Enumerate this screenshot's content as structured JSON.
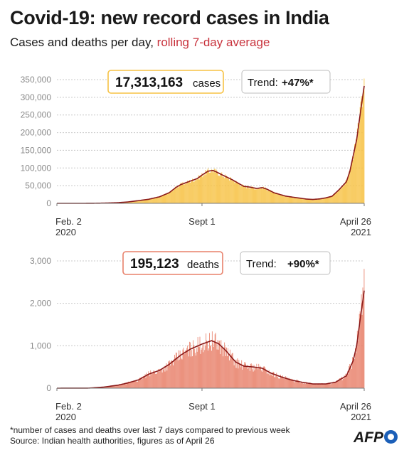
{
  "header": {
    "title": "Covid-19: new record cases in India",
    "subtitle_main": "Cases and deaths per day, ",
    "subtitle_accent": "rolling 7-day average"
  },
  "colors": {
    "cases_bar": "#f7c244",
    "deaths_bar": "#e8806a",
    "avg_line": "#8b1a1a",
    "accent_text": "#c8323c",
    "logo_blue": "#1b5fb8"
  },
  "chart_data": [
    {
      "type": "bar",
      "name": "cases",
      "x_start": "2020-02-02",
      "x_end": "2021-04-26",
      "ylim": [
        0,
        350000
      ],
      "yticks": [
        0,
        50000,
        100000,
        150000,
        200000,
        250000,
        300000,
        350000
      ],
      "ytick_labels": [
        "0",
        "50,000",
        "100,000",
        "150,000",
        "200,000",
        "250,000",
        "300,000",
        "350,000"
      ],
      "xtick_labels": [
        {
          "date": "2020-02-02",
          "line1": "Feb. 2",
          "line2": "2020"
        },
        {
          "date": "2020-09-01",
          "line1": "Sept 1",
          "line2": ""
        },
        {
          "date": "2021-04-26",
          "line1": "April 26",
          "line2": "2021"
        }
      ],
      "total_value": "17,313,163",
      "total_unit": "cases",
      "trend_label": "Trend:",
      "trend_value": "+47%*",
      "rolling_avg": [
        [
          "2020-02-02",
          0
        ],
        [
          "2020-03-15",
          20
        ],
        [
          "2020-04-01",
          300
        ],
        [
          "2020-04-15",
          900
        ],
        [
          "2020-05-01",
          1900
        ],
        [
          "2020-05-15",
          3800
        ],
        [
          "2020-06-01",
          7800
        ],
        [
          "2020-06-15",
          11500
        ],
        [
          "2020-07-01",
          18500
        ],
        [
          "2020-07-15",
          30000
        ],
        [
          "2020-07-25",
          45000
        ],
        [
          "2020-08-01",
          53000
        ],
        [
          "2020-08-15",
          63000
        ],
        [
          "2020-08-25",
          70000
        ],
        [
          "2020-09-01",
          80000
        ],
        [
          "2020-09-10",
          91000
        ],
        [
          "2020-09-17",
          93200
        ],
        [
          "2020-09-25",
          86000
        ],
        [
          "2020-10-01",
          80000
        ],
        [
          "2020-10-15",
          67000
        ],
        [
          "2020-11-01",
          48000
        ],
        [
          "2020-11-10",
          46000
        ],
        [
          "2020-11-20",
          42000
        ],
        [
          "2020-11-28",
          44500
        ],
        [
          "2020-12-05",
          40000
        ],
        [
          "2020-12-15",
          30000
        ],
        [
          "2021-01-01",
          20500
        ],
        [
          "2021-01-15",
          16500
        ],
        [
          "2021-02-01",
          12000
        ],
        [
          "2021-02-10",
          11000
        ],
        [
          "2021-02-20",
          12500
        ],
        [
          "2021-03-01",
          15500
        ],
        [
          "2021-03-10",
          20000
        ],
        [
          "2021-03-20",
          38000
        ],
        [
          "2021-03-31",
          61000
        ],
        [
          "2021-04-05",
          90000
        ],
        [
          "2021-04-10",
          135000
        ],
        [
          "2021-04-15",
          180000
        ],
        [
          "2021-04-20",
          250000
        ],
        [
          "2021-04-26",
          332000
        ]
      ],
      "bar_peak_2021-04-26": 352991
    },
    {
      "type": "bar",
      "name": "deaths",
      "x_start": "2020-02-02",
      "x_end": "2021-04-26",
      "ylim": [
        0,
        3000
      ],
      "yticks": [
        0,
        1000,
        2000,
        3000
      ],
      "ytick_labels": [
        "0",
        "1,000",
        "2,000",
        "3,000"
      ],
      "xtick_labels": [
        {
          "date": "2020-02-02",
          "line1": "Feb. 2",
          "line2": "2020"
        },
        {
          "date": "2020-09-01",
          "line1": "Sept 1",
          "line2": ""
        },
        {
          "date": "2021-04-26",
          "line1": "April 26",
          "line2": "2021"
        }
      ],
      "total_value": "195,123",
      "total_unit": "deaths",
      "trend_label": "Trend:",
      "trend_value": "+90%*",
      "rolling_avg": [
        [
          "2020-02-02",
          0
        ],
        [
          "2020-03-20",
          2
        ],
        [
          "2020-04-10",
          25
        ],
        [
          "2020-05-01",
          70
        ],
        [
          "2020-05-15",
          120
        ],
        [
          "2020-06-01",
          200
        ],
        [
          "2020-06-15",
          330
        ],
        [
          "2020-07-01",
          420
        ],
        [
          "2020-07-15",
          560
        ],
        [
          "2020-08-01",
          780
        ],
        [
          "2020-08-15",
          920
        ],
        [
          "2020-09-01",
          1040
        ],
        [
          "2020-09-15",
          1120
        ],
        [
          "2020-09-25",
          1050
        ],
        [
          "2020-10-05",
          900
        ],
        [
          "2020-10-20",
          620
        ],
        [
          "2020-11-01",
          520
        ],
        [
          "2020-11-15",
          500
        ],
        [
          "2020-11-28",
          470
        ],
        [
          "2020-12-10",
          360
        ],
        [
          "2020-12-25",
          270
        ],
        [
          "2021-01-10",
          190
        ],
        [
          "2021-01-25",
          140
        ],
        [
          "2021-02-10",
          100
        ],
        [
          "2021-03-01",
          100
        ],
        [
          "2021-03-15",
          140
        ],
        [
          "2021-03-31",
          290
        ],
        [
          "2021-04-10",
          650
        ],
        [
          "2021-04-15",
          1000
        ],
        [
          "2021-04-20",
          1600
        ],
        [
          "2021-04-26",
          2300
        ]
      ],
      "bar_peak_2021-04-26": 2812
    }
  ],
  "footnote": {
    "line1": "*number of cases and deaths over last 7 days compared to previous week",
    "line2": "Source:  Indian health authorities, figures as of April 26"
  },
  "logo": {
    "text": "AFP"
  }
}
